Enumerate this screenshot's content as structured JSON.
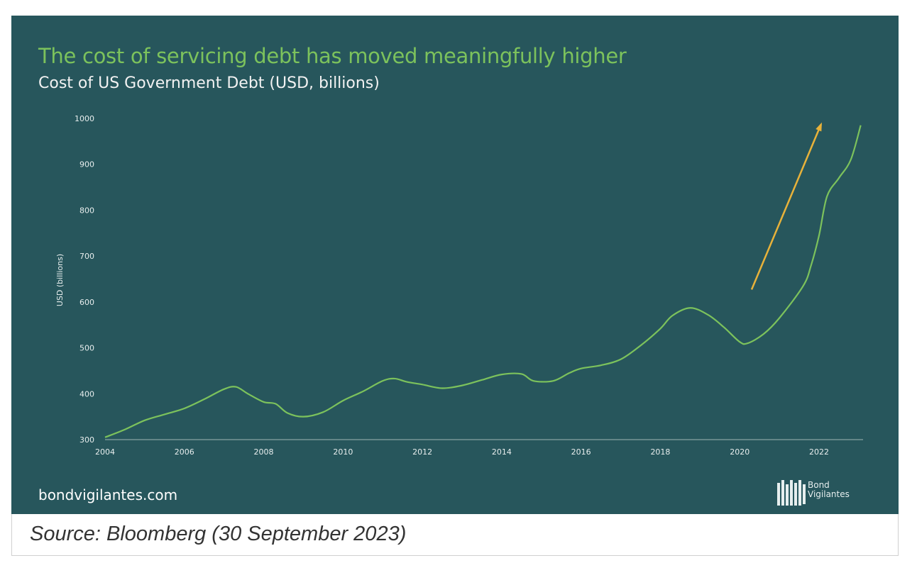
{
  "title": "The cost of servicing debt has moved meaningfully  higher",
  "subtitle": "Cost of US Government Debt (USD, billions)",
  "website": "bondvigilantes.com",
  "logo_text": [
    "Bond",
    "Vigilantes"
  ],
  "caption": "Source: Bloomberg (30 September 2023)",
  "colors": {
    "background": "#27565c",
    "line": "#7cc25c",
    "arrow": "#e8b23a",
    "title": "#7cc25c"
  },
  "chart_data": {
    "type": "line",
    "title": "Cost of US Government Debt (USD, billions)",
    "xlabel": "",
    "ylabel": "USD (billions)",
    "xlim": [
      2004,
      2023.05
    ],
    "ylim": [
      300,
      1000
    ],
    "xticks": [
      "2004",
      "2006",
      "2008",
      "2010",
      "2012",
      "2014",
      "2016",
      "2018",
      "2020",
      "2022"
    ],
    "yticks": [
      "300",
      "400",
      "500",
      "600",
      "700",
      "800",
      "900",
      "1000"
    ],
    "grid": false,
    "series": [
      {
        "name": "Cost of US Government Debt",
        "x": [
          2004,
          2004.5,
          2005,
          2005.5,
          2006,
          2006.5,
          2007,
          2007.3,
          2007.6,
          2008,
          2008.3,
          2008.6,
          2009,
          2009.5,
          2010,
          2010.5,
          2011,
          2011.3,
          2011.6,
          2012,
          2012.5,
          2013,
          2013.5,
          2014,
          2014.5,
          2014.8,
          2015.3,
          2015.7,
          2016,
          2016.5,
          2017,
          2017.5,
          2018,
          2018.3,
          2018.75,
          2019.2,
          2019.6,
          2020,
          2020.2,
          2020.6,
          2021,
          2021.6,
          2021.8,
          2022,
          2022.2,
          2022.5,
          2022.8,
          2023.05
        ],
        "y": [
          305,
          322,
          342,
          355,
          368,
          388,
          410,
          415,
          400,
          382,
          378,
          358,
          350,
          360,
          385,
          405,
          428,
          433,
          426,
          420,
          412,
          418,
          430,
          442,
          443,
          428,
          428,
          445,
          455,
          462,
          475,
          505,
          542,
          570,
          587,
          572,
          545,
          513,
          510,
          530,
          565,
          635,
          680,
          745,
          830,
          870,
          910,
          985
        ]
      }
    ],
    "annotations": [
      {
        "type": "arrow",
        "from": [
          2020.3,
          627
        ],
        "to": [
          2022.05,
          987
        ]
      }
    ]
  }
}
